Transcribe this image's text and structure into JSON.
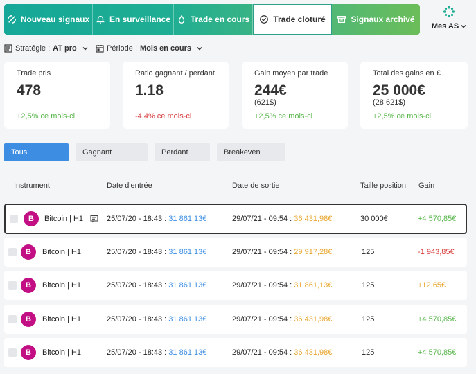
{
  "nav": {
    "tabs": [
      {
        "label": "Nouveau signaux",
        "icon": "signal-icon"
      },
      {
        "label": "En surveillance",
        "icon": "bell-icon"
      },
      {
        "label": "Trade en cours",
        "icon": "flame-icon"
      },
      {
        "label": "Trade cloturé",
        "icon": "check-circle-icon",
        "active": true
      },
      {
        "label": "Signaux archivé",
        "icon": "archive-icon"
      }
    ],
    "account_label": "Mes AS"
  },
  "filters": {
    "strategy_label": "Stratégie :",
    "strategy_value": "AT pro",
    "period_label": "Période :",
    "period_value": "Mois en cours"
  },
  "stats": [
    {
      "label": "Trade pris",
      "value": "478",
      "sub": "",
      "change": "+2,5%",
      "change_suffix": " ce mois-ci",
      "trend": "up"
    },
    {
      "label": "Ratio gagnant / perdant",
      "value": "1.18",
      "sub": "",
      "change": "-4,4%",
      "change_suffix": " ce mois-ci",
      "trend": "down"
    },
    {
      "label": "Gain moyen par trade",
      "value": "244€",
      "sub": "(621$)",
      "change": "+2,5%",
      "change_suffix": " ce mois-ci",
      "trend": "up"
    },
    {
      "label": "Total des gains en €",
      "value": "25 000€",
      "sub": "(28 621$)",
      "change": "+2,5%",
      "change_suffix": " ce mois-ci",
      "trend": "up"
    }
  ],
  "result_filters": [
    "Tous",
    "Gagnant",
    "Perdant",
    "Breakeven"
  ],
  "table": {
    "columns": [
      "Instrument",
      "Date d'entrée",
      "Date de sortie",
      "Taille position",
      "Gain"
    ],
    "rows": [
      {
        "avatar": "B",
        "instrument": "Bitcoin | H1",
        "entry_date": "25/07/20 - 18:43 :",
        "entry_price": "31 861,13€",
        "exit_date": "29/07/21 - 09:54 :",
        "exit_price": "36 431,98€",
        "size": "30 000€",
        "gain": "+4 570,85€",
        "gain_color": "green",
        "has_comment": true,
        "selected": true
      },
      {
        "avatar": "B",
        "instrument": "Bitcoin | H1",
        "entry_date": "25/07/20 - 18:43 :",
        "entry_price": "31 861,13€",
        "exit_date": "29/07/21 - 09:54 :",
        "exit_price": "29 917,28€",
        "size": "125",
        "gain": "-1 943,85€",
        "gain_color": "red",
        "has_comment": false,
        "selected": false
      },
      {
        "avatar": "B",
        "instrument": "Bitcoin | H1",
        "entry_date": "25/07/20 - 18:43 :",
        "entry_price": "31 861,13€",
        "exit_date": "29/07/21 - 09:54 :",
        "exit_price": "31 861,13€",
        "size": "125",
        "gain": "+12,65€",
        "gain_color": "orange",
        "has_comment": false,
        "selected": false
      },
      {
        "avatar": "B",
        "instrument": "Bitcoin | H1",
        "entry_date": "25/07/20 - 18:43 :",
        "entry_price": "31 861,13€",
        "exit_date": "29/07/21 - 09:54 :",
        "exit_price": "36 431,98€",
        "size": "125",
        "gain": "+4 570,85€",
        "gain_color": "green",
        "has_comment": false,
        "selected": false
      },
      {
        "avatar": "B",
        "instrument": "Bitcoin | H1",
        "entry_date": "25/07/20 - 18:43 :",
        "entry_price": "31 861,13€",
        "exit_date": "29/07/21 - 09:54 :",
        "exit_price": "36 431,98€",
        "size": "125",
        "gain": "+4 570,85€",
        "gain_color": "green",
        "has_comment": false,
        "selected": false
      }
    ]
  },
  "colors": {
    "accent_blue": "#3d8ee3",
    "positive": "#59b74c",
    "negative": "#d63a3a",
    "exit_price": "#e8a52c",
    "avatar": "#c20f83"
  }
}
